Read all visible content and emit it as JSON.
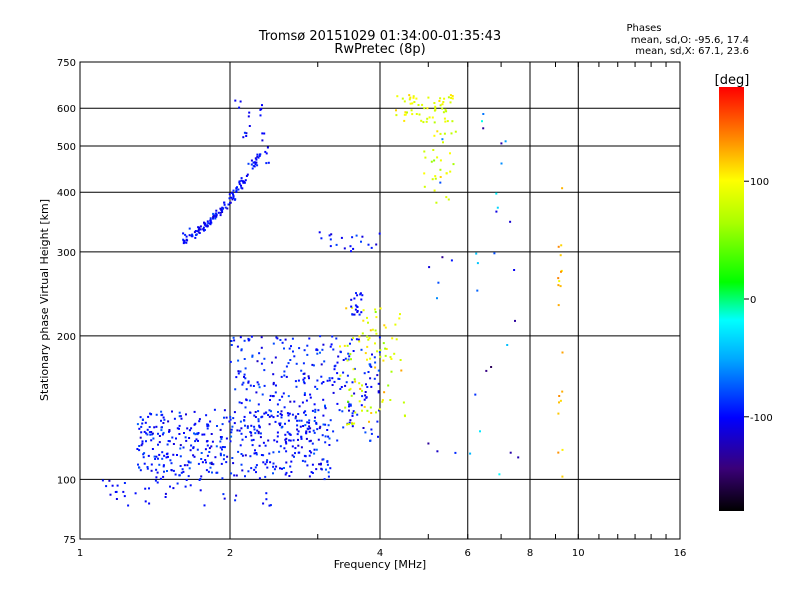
{
  "title": "Tromsø 20151029 01:34:00-01:35:43",
  "subtitle": "RwPretec (8p)",
  "phase_box": {
    "heading": "Phases",
    "line_o": "mean, sd,O: -95.6, 17.4",
    "line_x": "mean, sd,X:  67.1, 23.6"
  },
  "chart_data": {
    "type": "scatter",
    "title": "Tromsø 20151029 01:34:00-01:35:43",
    "subtitle": "RwPretec (8p)",
    "xlabel": "Frequency [MHz]",
    "ylabel": "Stationary phase Virtual Height [km]",
    "x_scale": "log",
    "y_scale": "log",
    "xlim": [
      1,
      16
    ],
    "ylim": [
      75,
      750
    ],
    "x_ticks": [
      1,
      2,
      4,
      6,
      8,
      10,
      16
    ],
    "x_tick_labels": [
      "1",
      "2",
      "4",
      "6",
      "8",
      "10",
      "16"
    ],
    "y_ticks": [
      75,
      100,
      200,
      300,
      400,
      500,
      600,
      750
    ],
    "y_tick_labels": [
      "75",
      "100",
      "200",
      "300",
      "400",
      "500",
      "600",
      "750"
    ],
    "grid": true,
    "colorbar": {
      "label": "[deg]",
      "range": [
        -180,
        180
      ],
      "ticks": [
        100,
        0,
        -100
      ],
      "tick_labels": [
        "100",
        "0",
        "-100"
      ]
    },
    "clusters": [
      {
        "name": "",
        "x_range": [
          1.6,
          2.3
        ],
        "y_range": [
          320,
          480
        ],
        "n": 140,
        "phase": -100,
        "phase_sd": 15,
        "curve": true
      },
      {
        "name": "",
        "x_range": [
          2.05,
          2.4
        ],
        "y_range": [
          450,
          640
        ],
        "n": 25,
        "phase": -100,
        "phase_sd": 15
      },
      {
        "name": "",
        "x_range": [
          1.3,
          3.2
        ],
        "y_range": [
          100,
          140
        ],
        "n": 420,
        "phase": -95,
        "phase_sd": 20
      },
      {
        "name": "",
        "x_range": [
          2.0,
          4.0
        ],
        "y_range": [
          120,
          200
        ],
        "n": 300,
        "phase": -95,
        "phase_sd": 20
      },
      {
        "name": "",
        "x_range": [
          3.3,
          4.5
        ],
        "y_range": [
          130,
          230
        ],
        "n": 90,
        "phase": 90,
        "phase_sd": 30
      },
      {
        "name": "",
        "x_range": [
          4.3,
          5.6
        ],
        "y_range": [
          560,
          640
        ],
        "n": 60,
        "phase": 90,
        "phase_sd": 20
      },
      {
        "name": "",
        "x_range": [
          4.9,
          5.7
        ],
        "y_range": [
          380,
          540
        ],
        "n": 30,
        "phase": 90,
        "phase_sd": 25
      },
      {
        "name": "",
        "x_range": [
          3.0,
          4.0
        ],
        "y_range": [
          300,
          330
        ],
        "n": 20,
        "phase": -100,
        "phase_sd": 15
      },
      {
        "name": "",
        "x_range": [
          3.5,
          3.7
        ],
        "y_range": [
          220,
          250
        ],
        "n": 20,
        "phase": -100,
        "phase_sd": 15
      },
      {
        "name": "",
        "x_range": [
          1.05,
          2.6
        ],
        "y_range": [
          88,
          100
        ],
        "n": 40,
        "phase": -100,
        "phase_sd": 15
      },
      {
        "name": "",
        "x_range": [
          9.1,
          9.3
        ],
        "y_range": [
          100,
          420
        ],
        "n": 20,
        "phase": 120,
        "phase_sd": 25
      },
      {
        "name": "",
        "x_range": [
          5.0,
          7.6
        ],
        "y_range": [
          100,
          600
        ],
        "n": 35,
        "phase": -80,
        "phase_sd": 60
      }
    ]
  }
}
